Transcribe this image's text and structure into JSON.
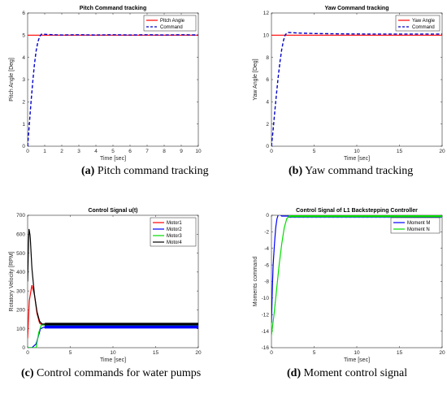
{
  "captions": [
    {
      "tag": "(a)",
      "text": "Pitch command tracking"
    },
    {
      "tag": "(b)",
      "text": "Yaw command tracking"
    },
    {
      "tag": "(c)",
      "text": "Control commands for water pumps"
    },
    {
      "tag": "(d)",
      "text": "Moment control signal"
    }
  ],
  "chart_data": [
    {
      "type": "line",
      "title": "Pitch Command tracking",
      "xlabel": "Time [sec]",
      "ylabel": "Pitch Angle [Deg]",
      "xlim": [
        0,
        10
      ],
      "ylim": [
        0,
        6
      ],
      "xticks": [
        "0",
        "1",
        "2",
        "3",
        "4",
        "5",
        "6",
        "7",
        "8",
        "9",
        "10"
      ],
      "yticks": [
        "0",
        "1",
        "2",
        "3",
        "4",
        "5",
        "6"
      ],
      "grid": false,
      "legend": "top-right",
      "series": [
        {
          "name": "Pitch Angle",
          "color": "#ff0000",
          "dash": "solid",
          "x": [
            0,
            10
          ],
          "y": [
            5,
            5
          ]
        },
        {
          "name": "Command",
          "color": "#0000cc",
          "dash": "dashed",
          "x": [
            0,
            0.1,
            0.2,
            0.3,
            0.4,
            0.5,
            0.6,
            0.7,
            0.8,
            0.9,
            1,
            1.5,
            2,
            3,
            4,
            5,
            6,
            7,
            8,
            9,
            10
          ],
          "y": [
            0,
            1,
            2,
            2.9,
            3.7,
            4.3,
            4.7,
            4.93,
            5.04,
            5.06,
            5.04,
            5.02,
            5.01,
            5.02,
            5.01,
            5.02,
            5.01,
            5.02,
            5.01,
            5.02,
            5.01
          ]
        }
      ]
    },
    {
      "type": "line",
      "title": "Yaw Command tracking",
      "xlabel": "Time [sec]",
      "ylabel": "Yaw Angle [Deg]",
      "xlim": [
        0,
        20
      ],
      "ylim": [
        0,
        12
      ],
      "xticks": [
        "0",
        "5",
        "10",
        "15",
        "20"
      ],
      "yticks": [
        "0",
        "2",
        "4",
        "6",
        "8",
        "10",
        "12"
      ],
      "grid": false,
      "legend": "top-right",
      "series": [
        {
          "name": "Yaw Angle",
          "color": "#ff0000",
          "dash": "solid",
          "x": [
            0,
            20
          ],
          "y": [
            10,
            10
          ]
        },
        {
          "name": "Command",
          "color": "#0000cc",
          "dash": "dashed",
          "x": [
            0,
            0.2,
            0.4,
            0.6,
            0.8,
            1,
            1.2,
            1.4,
            1.6,
            1.8,
            2,
            3,
            5,
            8,
            12,
            16,
            20
          ],
          "y": [
            0,
            1.5,
            3.2,
            4.8,
            6.3,
            7.6,
            8.7,
            9.5,
            10.0,
            10.2,
            10.25,
            10.2,
            10.15,
            10.12,
            10.1,
            10.1,
            10.1
          ]
        }
      ]
    },
    {
      "type": "line",
      "title": "Control Signal u(t)",
      "xlabel": "Time [sec]",
      "ylabel": "Rotatory Velocity [RPM]",
      "xlim": [
        0,
        20
      ],
      "ylim": [
        0,
        700
      ],
      "xticks": [
        "0",
        "5",
        "10",
        "15",
        "20"
      ],
      "yticks": [
        "0",
        "100",
        "200",
        "300",
        "400",
        "500",
        "600",
        "700"
      ],
      "grid": false,
      "legend": "top-right",
      "series": [
        {
          "name": "Motor1",
          "color": "#ff0000",
          "dash": "solid",
          "osc": 0,
          "x": [
            0,
            0.2,
            0.5,
            0.8,
            1.1,
            1.4,
            1.7,
            2,
            20
          ],
          "y": [
            50,
            250,
            330,
            280,
            180,
            130,
            120,
            120,
            120
          ]
        },
        {
          "name": "Motor2",
          "color": "#0000ff",
          "dash": "solid",
          "osc": 8,
          "x": [
            0,
            0.5,
            1,
            1.5,
            2,
            20
          ],
          "y": [
            0,
            0,
            20,
            100,
            110,
            110
          ]
        },
        {
          "name": "Motor3",
          "color": "#00dd00",
          "dash": "solid",
          "osc": 0,
          "x": [
            0,
            1,
            1.3,
            1.6,
            2,
            20
          ],
          "y": [
            0,
            0,
            80,
            120,
            120,
            120
          ]
        },
        {
          "name": "Motor4",
          "color": "#000000",
          "dash": "solid",
          "osc": 6,
          "x": [
            0,
            0.15,
            0.3,
            0.5,
            0.8,
            1.1,
            1.4,
            1.7,
            2,
            20
          ],
          "y": [
            350,
            630,
            590,
            420,
            280,
            190,
            140,
            125,
            125,
            125
          ]
        }
      ]
    },
    {
      "type": "line",
      "title": "Control Signal of L1 Backstepping Controller",
      "xlabel": "Time [sec]",
      "ylabel": "Moments command",
      "xlim": [
        0,
        20
      ],
      "ylim": [
        -16,
        0
      ],
      "xticks": [
        "0",
        "5",
        "10",
        "15",
        "20"
      ],
      "yticks": [
        "0",
        "-2",
        "-4",
        "-6",
        "-8",
        "-10",
        "-12",
        "-14",
        "-16"
      ],
      "grid": false,
      "legend": "top-right",
      "series": [
        {
          "name": "Moment M",
          "color": "#0000ff",
          "dash": "solid",
          "osc": 0.06,
          "x": [
            0,
            0.1,
            0.2,
            0.35,
            0.5,
            0.65,
            0.8,
            1.0,
            1.2,
            1.5,
            2,
            20
          ],
          "y": [
            -13,
            -9,
            -6,
            -3.5,
            -1.5,
            -0.4,
            0.05,
            0.1,
            -0.1,
            -0.1,
            -0.1,
            -0.1
          ]
        },
        {
          "name": "Moment N",
          "color": "#00dd00",
          "dash": "solid",
          "osc": 0.04,
          "x": [
            0,
            0.3,
            0.6,
            0.9,
            1.2,
            1.5,
            1.8,
            2.1,
            20
          ],
          "y": [
            -14.5,
            -12,
            -9,
            -6,
            -3.5,
            -1.5,
            -0.4,
            -0.1,
            -0.1
          ]
        }
      ]
    }
  ]
}
